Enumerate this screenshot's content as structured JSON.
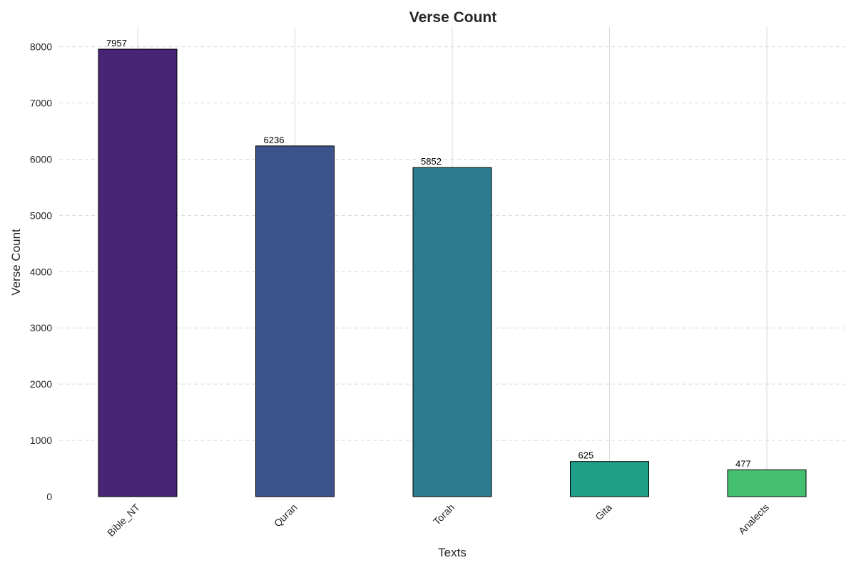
{
  "chart_data": {
    "type": "bar",
    "title": "Verse Count",
    "xlabel": "Texts",
    "ylabel": "Verse Count",
    "categories": [
      "Bible_NT",
      "Quran",
      "Torah",
      "Gita",
      "Analects"
    ],
    "values": [
      7957,
      6236,
      5852,
      625,
      477
    ],
    "data_labels": [
      "7957",
      "6236",
      "5852",
      "625",
      "477"
    ],
    "colors": [
      "#482475",
      "#3b528b",
      "#2c7b8e",
      "#1f9f88",
      "#44bf70"
    ],
    "bar_edge_color": "#000000",
    "ylim": [
      0,
      8350
    ],
    "yticks": [
      0,
      1000,
      2000,
      3000,
      4000,
      5000,
      6000,
      7000,
      8000
    ],
    "ytick_labels": [
      "0",
      "1000",
      "2000",
      "3000",
      "4000",
      "5000",
      "6000",
      "7000",
      "8000"
    ],
    "grid": {
      "y": "dashed",
      "x": "solid"
    },
    "grid_color": "#d9d9d9",
    "xtick_rotation_deg": 45,
    "legend": "none"
  }
}
